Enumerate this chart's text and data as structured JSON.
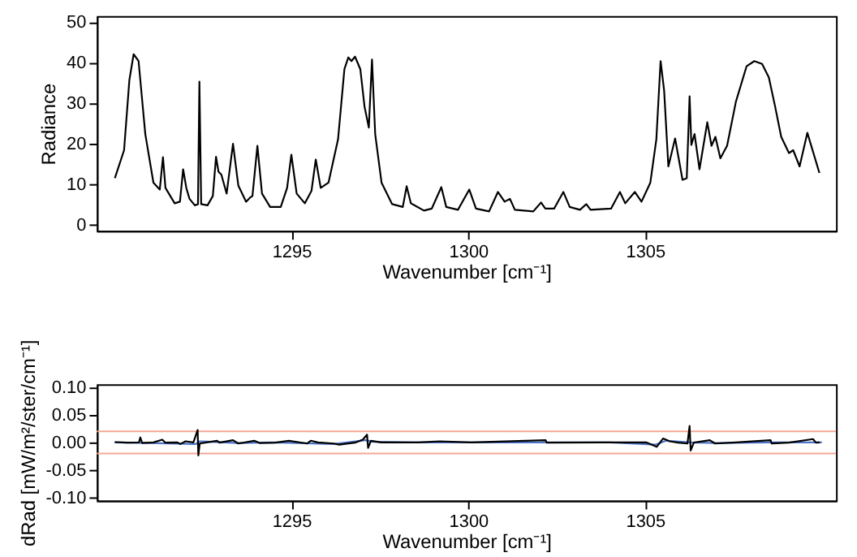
{
  "chart_data": [
    {
      "type": "line",
      "xlabel": "Wavenumber [cm⁻¹]",
      "ylabel": "Radiance",
      "xlim": [
        1289.5,
        1310.4
      ],
      "ylim": [
        -1.5,
        51.5
      ],
      "xticks": [
        1295,
        1300,
        1305
      ],
      "yticks": [
        0,
        10,
        20,
        30,
        40,
        50
      ],
      "grid": false,
      "series": [
        {
          "color": "#000000",
          "x": [
            1290.01,
            1290.27,
            1290.42,
            1290.54,
            1290.68,
            1290.87,
            1291.1,
            1291.28,
            1291.37,
            1291.44,
            1291.7,
            1291.85,
            1291.94,
            1292.03,
            1292.12,
            1292.27,
            1292.36,
            1292.4,
            1292.45,
            1292.63,
            1292.78,
            1292.87,
            1292.94,
            1293.02,
            1293.17,
            1293.35,
            1293.5,
            1293.72,
            1293.83,
            1293.9,
            1294.04,
            1294.17,
            1294.4,
            1294.7,
            1294.88,
            1295.0,
            1295.15,
            1295.38,
            1295.57,
            1295.69,
            1295.83,
            1296.05,
            1296.32,
            1296.5,
            1296.61,
            1296.7,
            1296.8,
            1296.95,
            1297.07,
            1297.19,
            1297.28,
            1297.37,
            1297.55,
            1297.85,
            1298.15,
            1298.26,
            1298.38,
            1298.75,
            1298.97,
            1299.24,
            1299.38,
            1299.71,
            1300.03,
            1300.22,
            1300.59,
            1300.84,
            1301.03,
            1301.18,
            1301.32,
            1301.84,
            1302.06,
            1302.18,
            1302.43,
            1302.69,
            1302.87,
            1303.16,
            1303.34,
            1303.46,
            1304.04,
            1304.29,
            1304.44,
            1304.71,
            1304.9,
            1305.15,
            1305.32,
            1305.44,
            1305.54,
            1305.66,
            1305.85,
            1306.06,
            1306.18,
            1306.26,
            1306.31,
            1306.4,
            1306.54,
            1306.76,
            1306.88,
            1306.99,
            1307.13,
            1307.32,
            1307.57,
            1307.87,
            1308.09,
            1308.31,
            1308.5,
            1308.68,
            1308.85,
            1309.07,
            1309.19,
            1309.37,
            1309.59,
            1309.93
          ],
          "values": [
            11.5,
            18.4,
            35.7,
            42.1,
            40.4,
            22.4,
            10.4,
            8.7,
            16.7,
            9.1,
            5.3,
            5.7,
            13.7,
            9.1,
            6.4,
            4.8,
            5.1,
            35.3,
            5.1,
            4.8,
            7.1,
            16.8,
            13.1,
            12.4,
            7.7,
            20.0,
            9.7,
            5.7,
            6.7,
            7.1,
            19.5,
            7.7,
            4.4,
            4.4,
            9.1,
            17.3,
            7.7,
            5.3,
            8.4,
            16.1,
            9.1,
            10.4,
            21.1,
            38.4,
            41.3,
            40.4,
            41.5,
            38.4,
            29.1,
            24.0,
            40.8,
            22.4,
            10.4,
            5.1,
            4.4,
            9.5,
            5.3,
            3.5,
            4.0,
            9.3,
            4.4,
            3.7,
            8.7,
            4.0,
            3.3,
            8.1,
            5.7,
            6.4,
            3.7,
            3.3,
            5.5,
            4.0,
            4.0,
            8.1,
            4.4,
            3.7,
            5.1,
            3.7,
            4.0,
            8.1,
            5.3,
            8.1,
            5.7,
            10.4,
            21.1,
            40.4,
            33.1,
            14.4,
            21.3,
            11.1,
            11.5,
            31.7,
            19.7,
            22.4,
            13.7,
            25.3,
            19.5,
            21.7,
            16.4,
            19.5,
            30.4,
            39.1,
            40.4,
            39.7,
            36.4,
            29.1,
            21.7,
            17.7,
            18.4,
            14.4,
            22.7,
            12.8
          ]
        }
      ]
    },
    {
      "type": "line",
      "xlabel": "Wavenumber [cm⁻¹]",
      "ylabel": "dRad [mW/m²/ster/cm⁻¹]",
      "xlim": [
        1289.5,
        1310.4
      ],
      "ylim": [
        -0.105,
        0.105
      ],
      "xticks": [
        1295,
        1300,
        1305
      ],
      "yticks": [
        {
          "value": -0.1,
          "label": "-0.10"
        },
        {
          "value": -0.05,
          "label": "-0.05"
        },
        {
          "value": 0,
          "label": "0.00"
        },
        {
          "value": 0.05,
          "label": "0.05"
        },
        {
          "value": 0.1,
          "label": "0.10"
        }
      ],
      "grid": false,
      "ref_lines": [
        {
          "axis": "y",
          "value": 0.02,
          "color": "#f4a896"
        },
        {
          "axis": "y",
          "value": -0.02,
          "color": "#f4a896"
        }
      ],
      "series": [
        {
          "color": "#4a72c8",
          "x": [
            1290.0,
            1291.0,
            1292.3,
            1292.4,
            1293.5,
            1294.5,
            1296.2,
            1297.1,
            1297.3,
            1298.5,
            1300.0,
            1302.0,
            1304.0,
            1305.3,
            1305.6,
            1306.3,
            1307.0,
            1308.5,
            1310.0
          ],
          "values": [
            0,
            -0.001,
            -0.003,
            0.002,
            -0.001,
            0,
            -0.003,
            0.004,
            0.001,
            0,
            0,
            0,
            0,
            -0.004,
            0.003,
            0,
            -0.001,
            0,
            0
          ]
        },
        {
          "color": "#000000",
          "x": [
            1290.01,
            1290.36,
            1290.69,
            1290.73,
            1290.78,
            1291.1,
            1291.35,
            1291.44,
            1291.78,
            1291.86,
            1292.01,
            1292.23,
            1292.35,
            1292.37,
            1292.41,
            1292.6,
            1292.9,
            1292.97,
            1293.35,
            1293.5,
            1293.95,
            1294.1,
            1294.55,
            1294.93,
            1295.45,
            1295.55,
            1295.75,
            1296.2,
            1296.35,
            1296.8,
            1297.02,
            1297.14,
            1297.17,
            1297.25,
            1297.55,
            1298.59,
            1299.19,
            1300.09,
            1302.19,
            1302.22,
            1303.83,
            1305.03,
            1305.33,
            1305.51,
            1305.7,
            1305.93,
            1306.2,
            1306.26,
            1306.29,
            1306.38,
            1306.83,
            1306.98,
            1307.57,
            1308.55,
            1308.58,
            1309.07,
            1309.75,
            1309.83,
            1309.94
          ],
          "values": [
            0.0005,
            -0.0005,
            0,
            0.009,
            -0.001,
            0,
            0.005,
            -0.0005,
            0,
            -0.003,
            0.002,
            0,
            0.0225,
            -0.0236,
            -0.002,
            0,
            0.003,
            -0.0005,
            0.004,
            -0.002,
            0.003,
            -0.001,
            -0.0005,
            0.003,
            -0.002,
            0.003,
            0,
            -0.002,
            -0.004,
            -0.0005,
            0.005,
            0.014,
            -0.01,
            0.003,
            0,
            0,
            0.002,
            0,
            0.004,
            -0.0005,
            0,
            0,
            -0.008,
            0.007,
            0.002,
            -0.0005,
            -0.002,
            0.0297,
            -0.0148,
            -0.0005,
            0.004,
            -0.002,
            0,
            0.004,
            -0.002,
            -0.0005,
            0.006,
            -0.0005,
            0
          ]
        }
      ]
    }
  ]
}
